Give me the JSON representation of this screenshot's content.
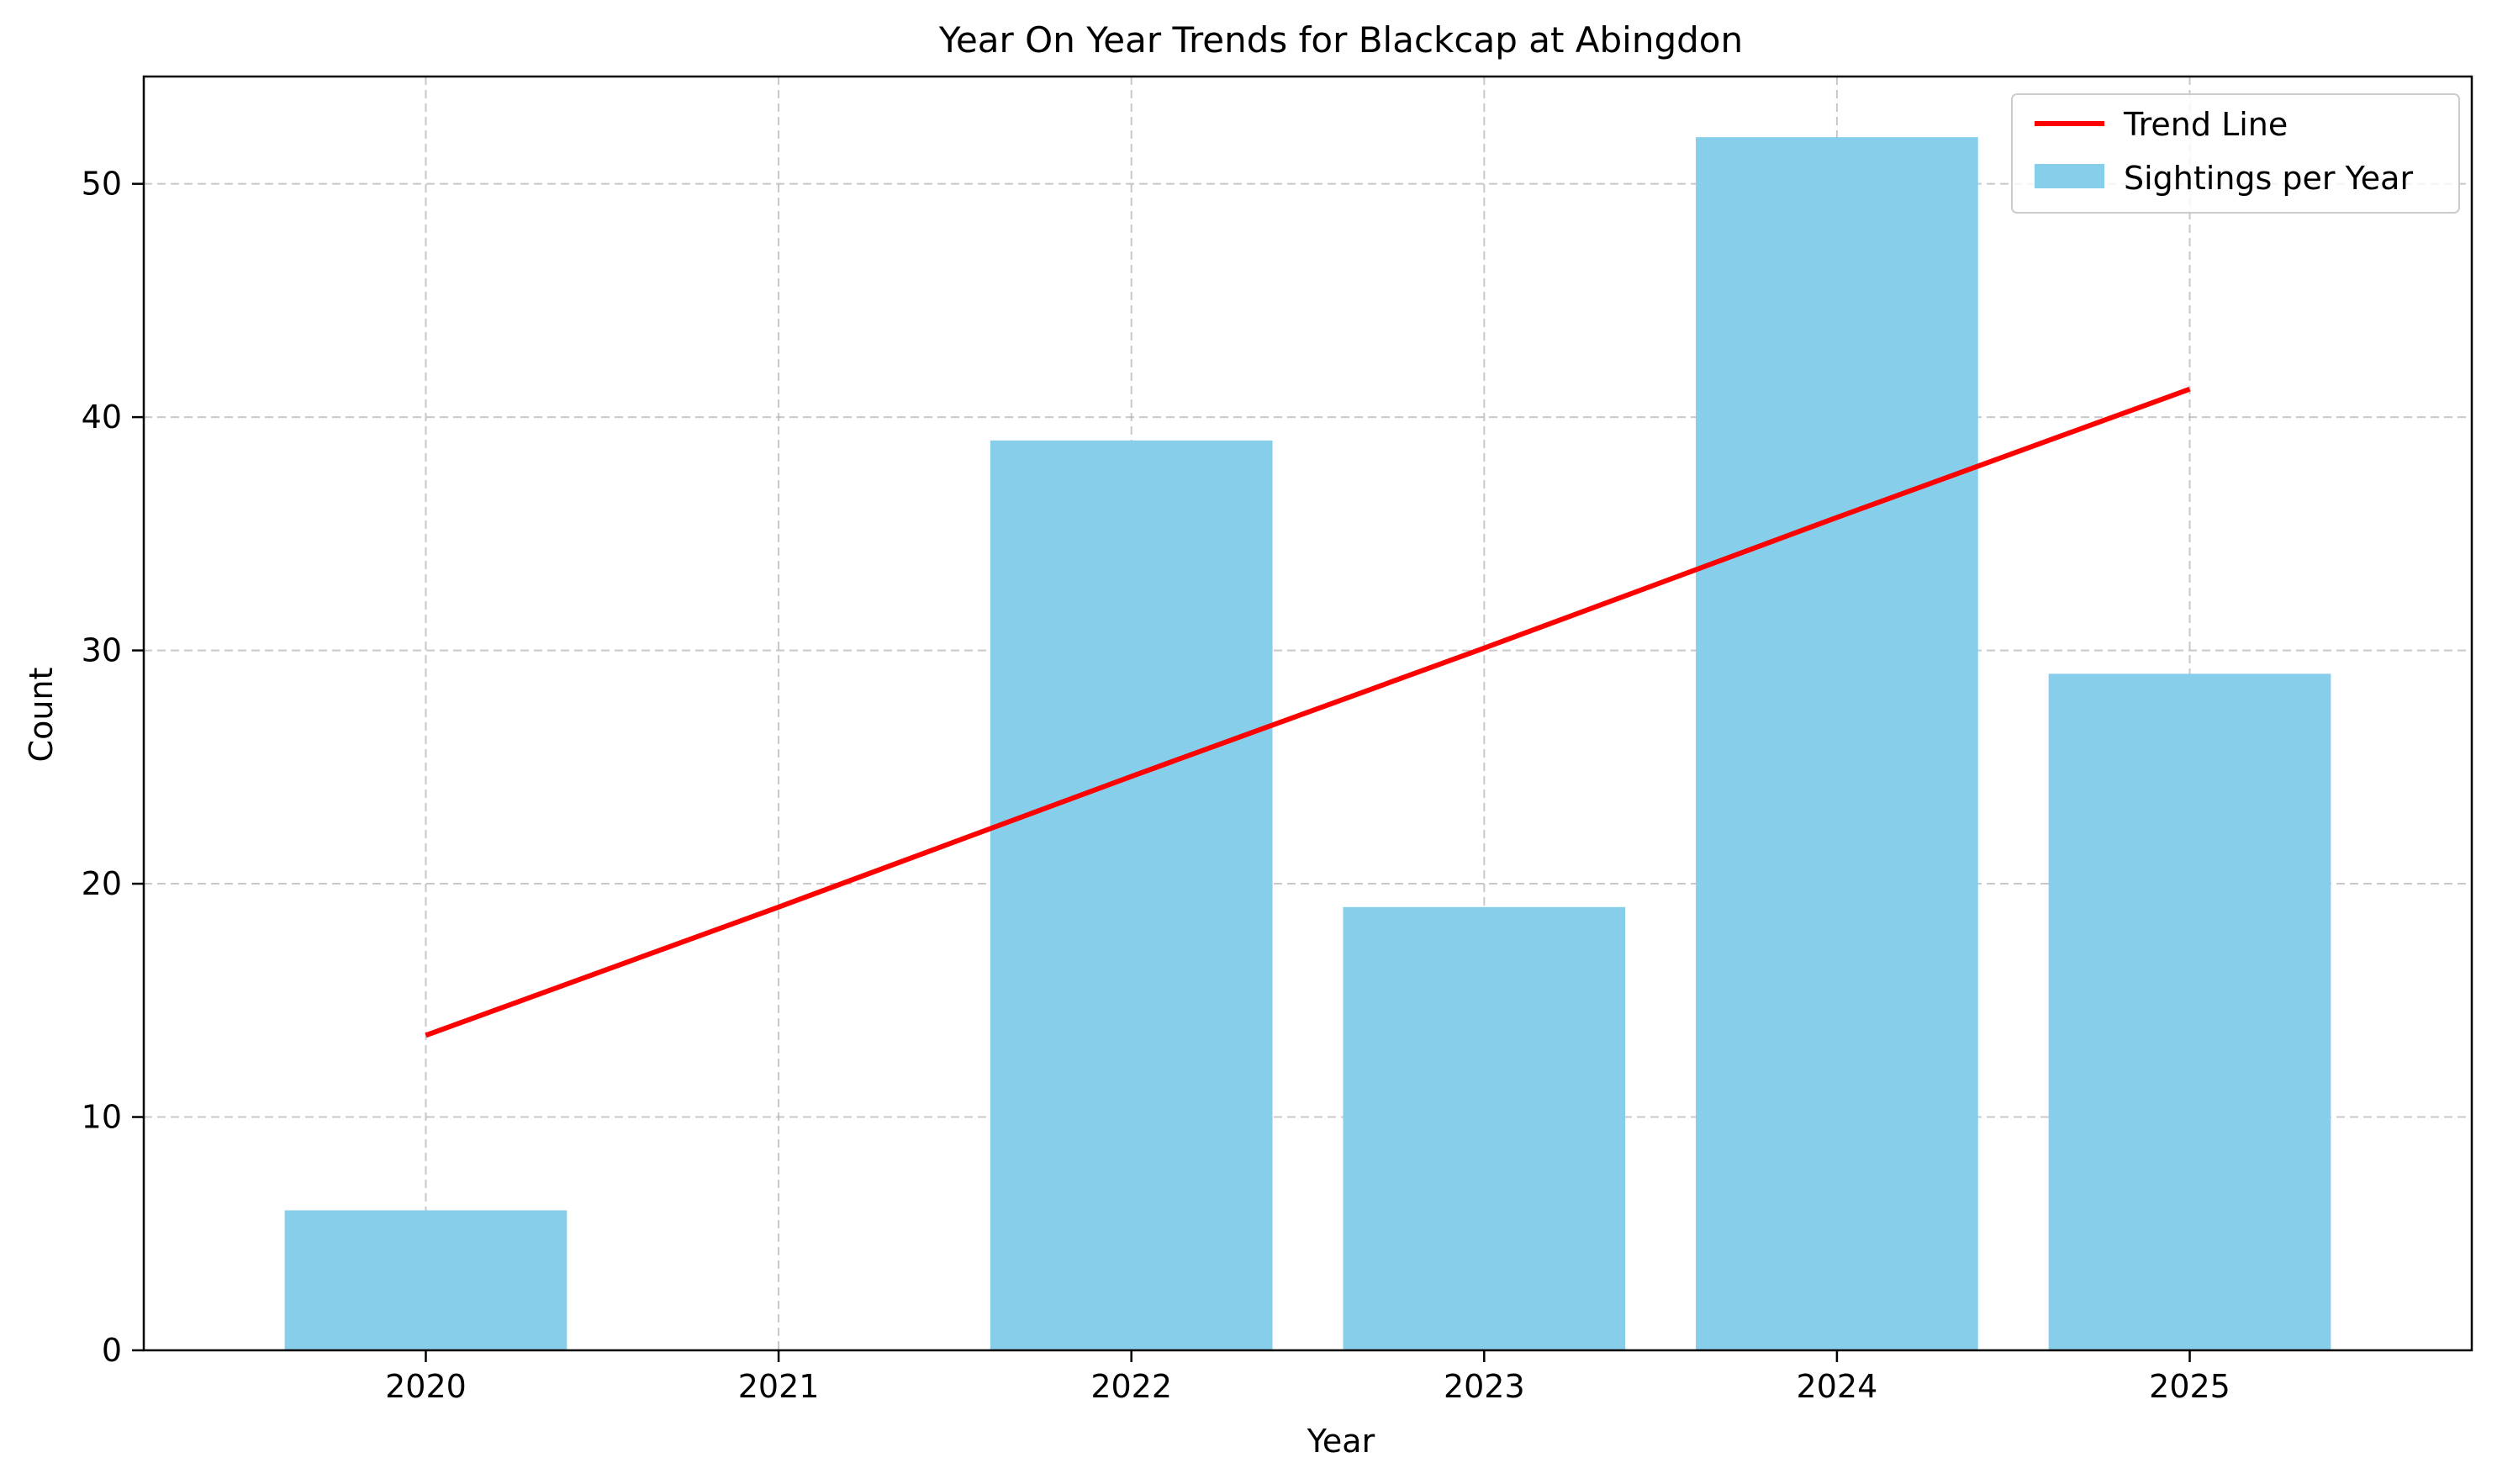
{
  "chart_data": {
    "type": "bar",
    "title": "Year On Year Trends for Blackcap at Abingdon",
    "xlabel": "Year",
    "ylabel": "Count",
    "categories": [
      "2020",
      "2021",
      "2022",
      "2023",
      "2024",
      "2025"
    ],
    "ylim": [
      0,
      54.6
    ],
    "yticks": [
      0,
      10,
      20,
      30,
      40,
      50
    ],
    "grid": true,
    "legend_position": "top-right",
    "series": [
      {
        "name": "Sightings per Year",
        "type": "bar",
        "color": "#87CEEB",
        "values": [
          6,
          0,
          39,
          19,
          52,
          29
        ]
      },
      {
        "name": "Trend Line",
        "type": "line",
        "color": "#FF0000",
        "values": [
          13.5,
          19.0,
          24.6,
          30.1,
          35.7,
          41.2
        ]
      }
    ]
  }
}
